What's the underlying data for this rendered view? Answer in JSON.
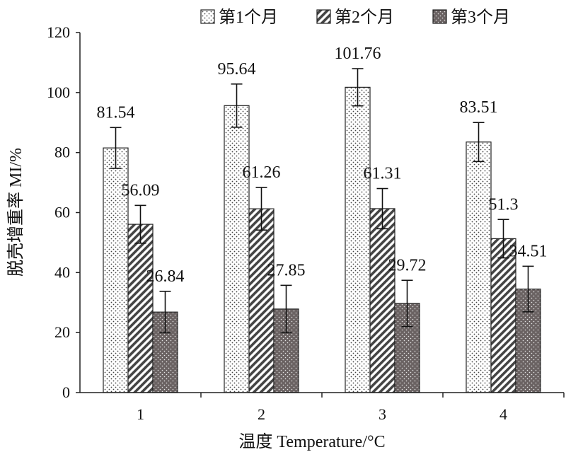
{
  "chart_data": {
    "type": "bar",
    "categories": [
      "1",
      "2",
      "3",
      "4"
    ],
    "series": [
      {
        "name": "第1个月",
        "values": [
          81.54,
          95.64,
          101.76,
          83.51
        ],
        "errors": [
          6.8,
          7.2,
          6.2,
          6.5
        ],
        "pattern": "dots-light"
      },
      {
        "name": "第2个月",
        "values": [
          56.09,
          61.26,
          61.31,
          51.3
        ],
        "errors": [
          6.3,
          7.1,
          6.7,
          6.4
        ],
        "pattern": "hatch"
      },
      {
        "name": "第3个月",
        "values": [
          26.84,
          27.85,
          29.72,
          34.51
        ],
        "errors": [
          6.9,
          7.9,
          7.7,
          7.6
        ],
        "pattern": "dots-dark"
      }
    ],
    "data_labels": [
      [
        "81.54",
        "95.64",
        "101.76",
        "83.51"
      ],
      [
        "56.09",
        "61.26",
        "61.31",
        "51.3"
      ],
      [
        "26.84",
        "27.85",
        "29.72",
        "34.51"
      ]
    ],
    "title": "",
    "xlabel": "温度 Temperature/°C",
    "ylabel": "脱壳增重率 MI/%",
    "ylim": [
      0,
      120
    ],
    "yticks": [
      "0",
      "20",
      "40",
      "60",
      "80",
      "100",
      "120"
    ],
    "grid": false,
    "legend_position": "top"
  }
}
